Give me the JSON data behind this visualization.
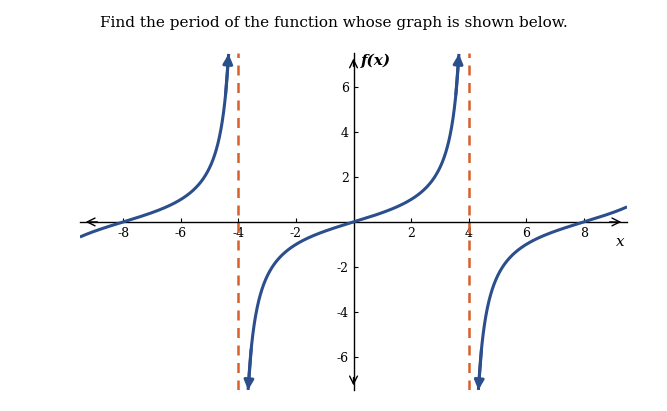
{
  "title": "Find the period of the function whose graph is shown below.",
  "ylabel": "f(x)",
  "xlabel": "x",
  "xlim": [
    -9.5,
    9.5
  ],
  "ylim": [
    -7.5,
    7.5
  ],
  "plot_xlim": [
    -8.5,
    8.5
  ],
  "plot_ylim": [
    -6.8,
    6.8
  ],
  "xticks": [
    -8,
    -6,
    -4,
    -2,
    2,
    4,
    6,
    8
  ],
  "yticks": [
    -6,
    -4,
    -2,
    2,
    4,
    6
  ],
  "asymptotes": [
    -4,
    4
  ],
  "asymptote_color": "#d95f2b",
  "curve_color": "#2b4e8c",
  "period": 8,
  "background_color": "#ffffff",
  "title_fontsize": 11,
  "tick_fontsize": 9,
  "axis_label_fontsize": 11,
  "curve_lw": 2.2
}
